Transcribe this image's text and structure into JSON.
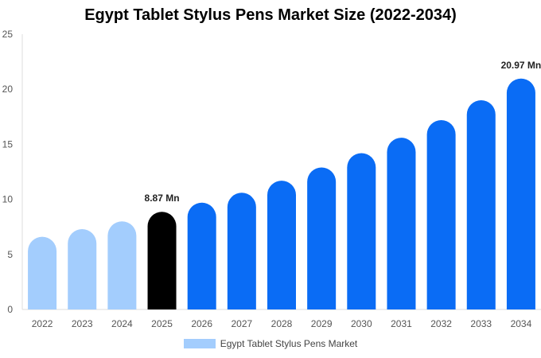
{
  "chart_data": {
    "type": "bar",
    "title": "Egypt Tablet Stylus Pens Market Size (2022-2034)",
    "categories": [
      "2022",
      "2023",
      "2024",
      "2025",
      "2026",
      "2027",
      "2028",
      "2029",
      "2030",
      "2031",
      "2032",
      "2033",
      "2034"
    ],
    "series": [
      {
        "name": "Egypt Tablet Stylus Pens Market",
        "values": [
          6.6,
          7.3,
          8.0,
          8.87,
          9.7,
          10.6,
          11.7,
          12.9,
          14.2,
          15.6,
          17.2,
          19.0,
          20.97
        ]
      }
    ],
    "bar_colors": [
      "#a3cdfd",
      "#a3cdfd",
      "#a3cdfd",
      "#000000",
      "#0a6cf5",
      "#0a6cf5",
      "#0a6cf5",
      "#0a6cf5",
      "#0a6cf5",
      "#0a6cf5",
      "#0a6cf5",
      "#0a6cf5",
      "#0a6cf5"
    ],
    "legend_color": "#a3cdfd",
    "data_labels": [
      {
        "category": "2025",
        "text": "8.87 Mn"
      },
      {
        "category": "2034",
        "text": "20.97 Mn"
      }
    ],
    "xlabel": "",
    "ylabel": "",
    "ylim": [
      0,
      25
    ],
    "yticks": [
      0,
      5,
      10,
      15,
      20,
      25
    ],
    "grid": false,
    "legend_position": "bottom"
  }
}
